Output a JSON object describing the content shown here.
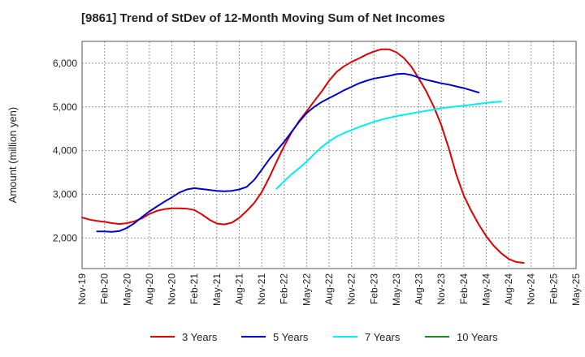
{
  "chart_data": {
    "type": "line",
    "title": "[9861]  Trend of StDev of 12-Month Moving Sum of Net Incomes",
    "ylabel": "Amount (million yen)",
    "xlabel": "",
    "ylim": [
      1300,
      6500
    ],
    "yticks": [
      2000,
      3000,
      4000,
      5000,
      6000
    ],
    "ytick_labels": [
      "2,000",
      "3,000",
      "4,000",
      "5,000",
      "6,000"
    ],
    "x_categories": [
      "Nov-19",
      "Feb-20",
      "May-20",
      "Aug-20",
      "Nov-20",
      "Feb-21",
      "May-21",
      "Aug-21",
      "Nov-21",
      "Feb-22",
      "May-22",
      "Aug-22",
      "Nov-22",
      "Feb-23",
      "May-23",
      "Aug-23",
      "Nov-23",
      "Feb-24",
      "May-24",
      "Aug-24",
      "Nov-24",
      "Feb-25",
      "May-25"
    ],
    "grid": true,
    "legend_position": "bottom",
    "series": [
      {
        "name": "3 Years",
        "color": "#dd0000",
        "start": 0,
        "values": [
          2470,
          2420,
          2390,
          2370,
          2340,
          2320,
          2340,
          2380,
          2450,
          2550,
          2620,
          2660,
          2680,
          2680,
          2670,
          2640,
          2540,
          2420,
          2330,
          2310,
          2350,
          2460,
          2620,
          2800,
          3050,
          3380,
          3750,
          4100,
          4420,
          4680,
          4900,
          5130,
          5350,
          5600,
          5800,
          5930,
          6030,
          6110,
          6200,
          6270,
          6320,
          6320,
          6250,
          6120,
          5920,
          5650,
          5350,
          5000,
          4580,
          4050,
          3450,
          2970,
          2620,
          2310,
          2040,
          1820,
          1650,
          1520,
          1450,
          1430
        ]
      },
      {
        "name": "5 Years",
        "color": "#0000cc",
        "start": 2,
        "values": [
          2150,
          2150,
          2140,
          2160,
          2230,
          2340,
          2480,
          2610,
          2720,
          2830,
          2930,
          3040,
          3110,
          3140,
          3120,
          3100,
          3080,
          3070,
          3080,
          3110,
          3170,
          3330,
          3560,
          3800,
          4000,
          4200,
          4430,
          4660,
          4860,
          5000,
          5110,
          5200,
          5290,
          5380,
          5460,
          5540,
          5600,
          5650,
          5680,
          5710,
          5750,
          5760,
          5730,
          5670,
          5620,
          5580,
          5540,
          5510,
          5470,
          5430,
          5380,
          5330
        ]
      },
      {
        "name": "7 Years",
        "color": "#00eeee",
        "start": 26,
        "values": [
          3130,
          3300,
          3460,
          3600,
          3750,
          3920,
          4080,
          4210,
          4320,
          4400,
          4470,
          4540,
          4600,
          4660,
          4710,
          4750,
          4790,
          4820,
          4850,
          4880,
          4910,
          4940,
          4970,
          4990,
          5010,
          5030,
          5050,
          5070,
          5090,
          5110,
          5120
        ]
      },
      {
        "name": "10 Years",
        "color": "#228822",
        "start": 0,
        "values": []
      }
    ]
  }
}
